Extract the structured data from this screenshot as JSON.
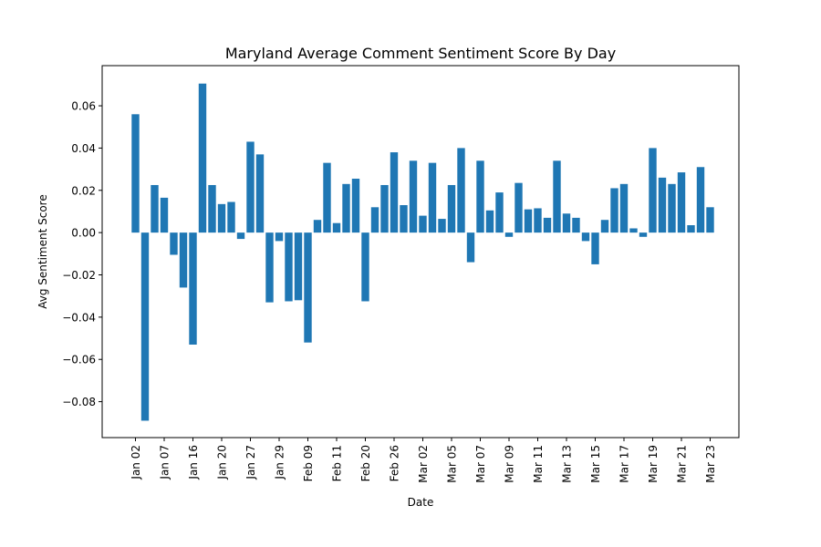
{
  "chart_data": {
    "type": "bar",
    "title": "Maryland Average Comment Sentiment Score By Day",
    "xlabel": "Date",
    "ylabel": "Avg Sentiment Score",
    "ylim": [
      -0.097,
      0.079
    ],
    "yticks": [
      0.06,
      0.04,
      0.02,
      0.0,
      -0.02,
      -0.04,
      -0.06,
      -0.08
    ],
    "ytick_labels": [
      "0.06",
      "0.04",
      "0.02",
      "0.00",
      "−0.02",
      "−0.04",
      "−0.06",
      "−0.08"
    ],
    "xtick_labels": [
      "Jan 02",
      "Jan 07",
      "Jan 16",
      "Jan 20",
      "Jan 27",
      "Jan 29",
      "Feb 09",
      "Feb 11",
      "Feb 20",
      "Feb 26",
      "Mar 02",
      "Mar 05",
      "Mar 07",
      "Mar 09",
      "Mar 11",
      "Mar 13",
      "Mar 15",
      "Mar 17",
      "Mar 19",
      "Mar 21",
      "Mar 23"
    ],
    "grid": false,
    "color": "#1f77b4",
    "values": [
      0.056,
      -0.089,
      0.0225,
      0.0165,
      -0.0105,
      -0.026,
      -0.053,
      0.0705,
      0.0225,
      0.0135,
      0.0145,
      -0.003,
      0.043,
      0.037,
      -0.033,
      -0.004,
      -0.0325,
      -0.032,
      -0.052,
      0.006,
      0.033,
      0.0045,
      0.023,
      0.0255,
      -0.0325,
      0.012,
      0.0225,
      0.038,
      0.013,
      0.034,
      0.008,
      0.033,
      0.0065,
      0.0225,
      0.04,
      -0.014,
      0.034,
      0.0105,
      0.019,
      -0.002,
      0.0235,
      0.011,
      0.0115,
      0.007,
      0.034,
      0.009,
      0.007,
      -0.004,
      -0.015,
      0.006,
      0.021,
      0.023,
      0.002,
      -0.002,
      0.04,
      0.026,
      0.023,
      0.0285,
      0.0035,
      0.031,
      0.012
    ]
  }
}
